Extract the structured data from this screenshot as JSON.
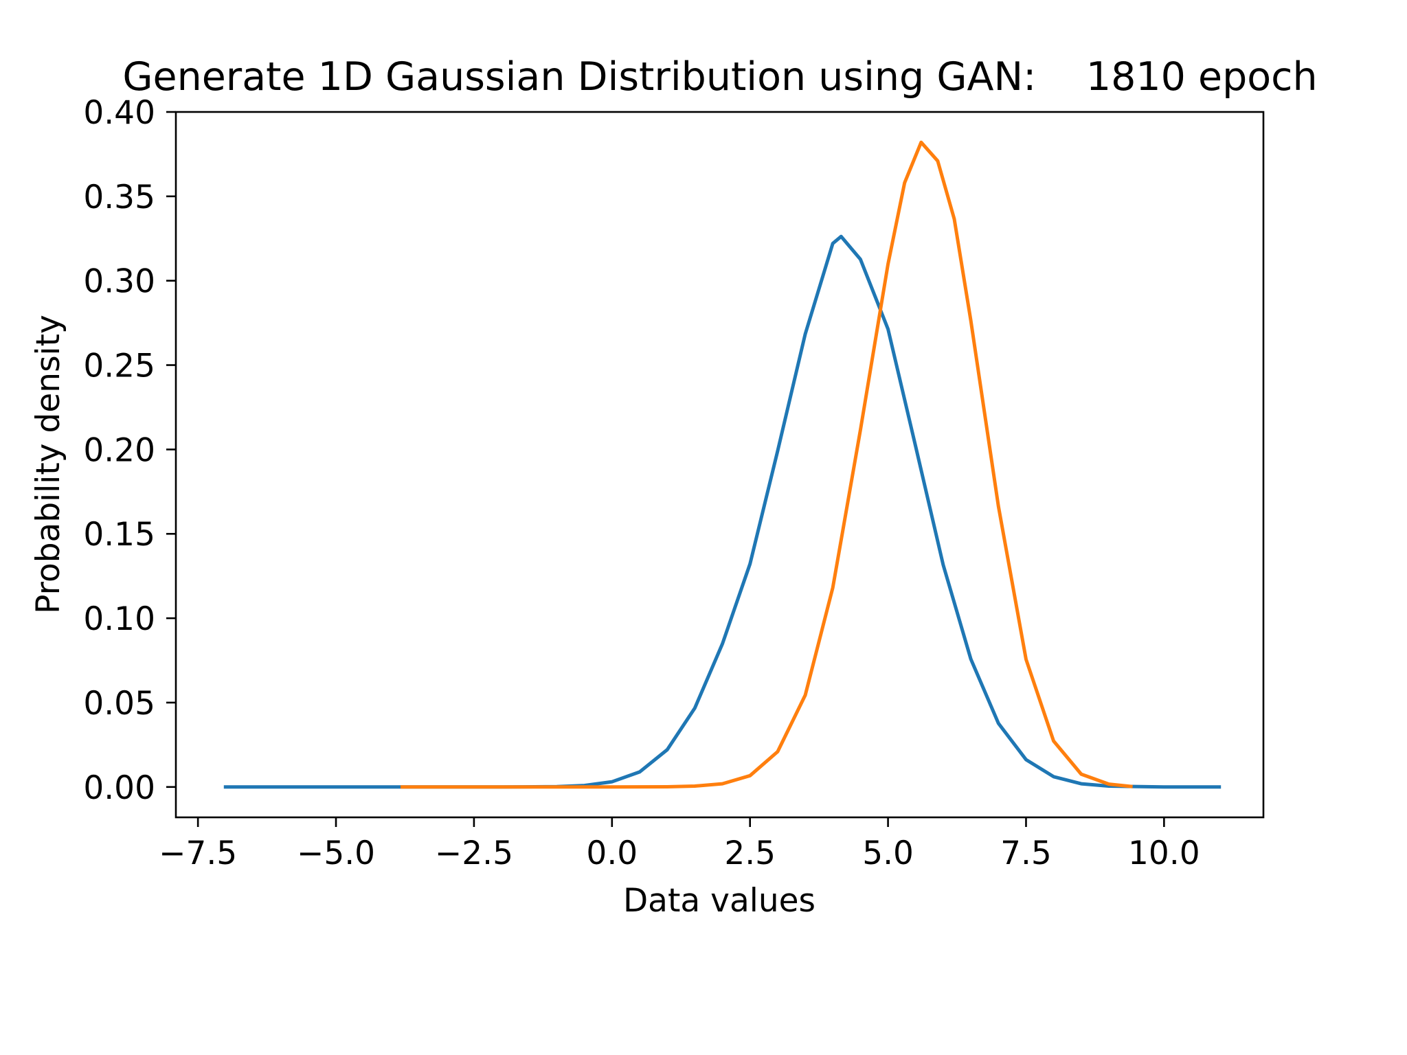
{
  "chart_data": {
    "type": "line",
    "title": "Generate 1D Gaussian Distribution using GAN:    1810 epoch",
    "xlabel": "Data values",
    "ylabel": "Probability density",
    "xlim": [
      -7.9,
      11.8
    ],
    "ylim": [
      -0.018,
      0.4
    ],
    "xticks": [
      "−7.5",
      "−5.0",
      "−2.5",
      "0.0",
      "2.5",
      "5.0",
      "7.5",
      "10.0"
    ],
    "xtick_values": [
      -7.5,
      -5.0,
      -2.5,
      0.0,
      2.5,
      5.0,
      7.5,
      10.0
    ],
    "yticks": [
      "0.00",
      "0.05",
      "0.10",
      "0.15",
      "0.20",
      "0.25",
      "0.30",
      "0.35",
      "0.40"
    ],
    "ytick_values": [
      0.0,
      0.05,
      0.1,
      0.15,
      0.2,
      0.25,
      0.3,
      0.35,
      0.4
    ],
    "grid": false,
    "legend": "none",
    "series": [
      {
        "color": "#1f77b4",
        "x": [
          -7.0,
          -6.0,
          -5.0,
          -4.0,
          -3.0,
          -2.0,
          -1.0,
          -0.5,
          0.0,
          0.5,
          1.0,
          1.5,
          2.0,
          2.5,
          3.0,
          3.5,
          4.0,
          4.15,
          4.5,
          5.0,
          5.5,
          6.0,
          6.5,
          7.0,
          7.5,
          8.0,
          8.5,
          9.0,
          10.0,
          11.0
        ],
        "y": [
          0.0,
          0.0,
          0.0,
          0.0,
          0.0,
          0.0,
          0.0002,
          0.0009,
          0.0031,
          0.0089,
          0.0221,
          0.0467,
          0.0848,
          0.1322,
          0.1991,
          0.2684,
          0.3221,
          0.3262,
          0.3127,
          0.2713,
          0.2018,
          0.1316,
          0.0758,
          0.0377,
          0.0162,
          0.0061,
          0.0019,
          0.0005,
          0.0,
          0.0
        ]
      },
      {
        "color": "#ff7f0e",
        "x": [
          -3.8,
          -3.0,
          -2.0,
          -1.0,
          0.0,
          1.0,
          1.5,
          2.0,
          2.5,
          3.0,
          3.5,
          4.0,
          4.5,
          5.0,
          5.3,
          5.6,
          5.9,
          6.2,
          6.5,
          7.0,
          7.5,
          8.0,
          8.5,
          9.0,
          9.4
        ],
        "y": [
          0.0,
          0.0,
          0.0,
          0.0,
          0.0,
          0.0001,
          0.0005,
          0.0019,
          0.0067,
          0.0209,
          0.0544,
          0.1181,
          0.2115,
          0.3099,
          0.358,
          0.382,
          0.371,
          0.3366,
          0.2764,
          0.1663,
          0.0756,
          0.0272,
          0.0076,
          0.0017,
          0.0003
        ]
      }
    ]
  }
}
